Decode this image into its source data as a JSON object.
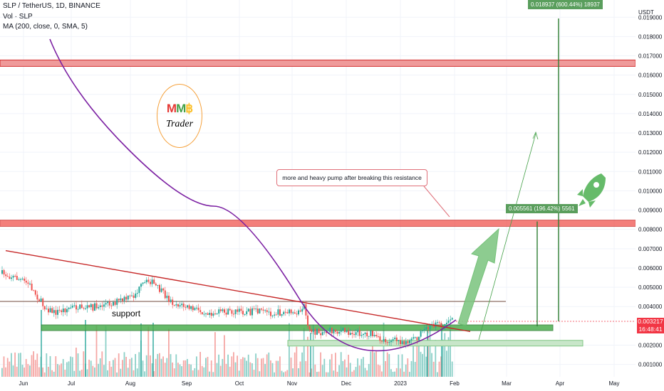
{
  "header": {
    "symbol_line": "SLP / TetherUS, 1D, BINANCE",
    "volume_line": "Vol · SLP",
    "ma_line": "MA (200, close, 0, SMA, 5)"
  },
  "axis": {
    "currency": "USDT",
    "y_ticks": [
      "0.019000",
      "0.018000",
      "0.017000",
      "0.016000",
      "0.015000",
      "0.014000",
      "0.013000",
      "0.012000",
      "0.011000",
      "0.010000",
      "0.009000",
      "0.008000",
      "0.007000",
      "0.006000",
      "0.005000",
      "0.004000",
      "0.002000",
      "0.001000"
    ],
    "x_ticks": [
      "Jun",
      "Jul",
      "Aug",
      "Sep",
      "Oct",
      "Nov",
      "Dec",
      "2023",
      "Feb",
      "Mar",
      "Apr",
      "May"
    ]
  },
  "current_price": {
    "value": "0.003217",
    "countdown": "16:48:41",
    "color": "#f23645"
  },
  "annotations": {
    "note": "more and heavy pump after breaking this resistance",
    "support_label": "support",
    "target1": "0.005561 (196.42%) 5561",
    "target2": "0.018937 (600.44%) 18937"
  },
  "logo": {
    "line1": "MM฿",
    "line2": "Trader"
  },
  "colors": {
    "up": "#26a69a",
    "down": "#ef5350",
    "ma": "#7b1fa2",
    "resistance": "#e57373",
    "support_zone": "#2e7d32",
    "target": "#43a047"
  },
  "chart_data": {
    "type": "candlestick",
    "series": [
      {
        "name": "MA (200, close, 0, SMA, 5)"
      }
    ],
    "y_unit": "USDT",
    "y_range": [
      0.0001,
      0.0196
    ],
    "resistance_zones": [
      0.0166,
      0.0083
    ],
    "support_zones": [
      0.0029,
      0.0021
    ],
    "trendline_start": 0.0069,
    "trendline_end": 0.003,
    "targets": [
      0.005561,
      0.018937
    ],
    "last_price": 0.003217
  }
}
